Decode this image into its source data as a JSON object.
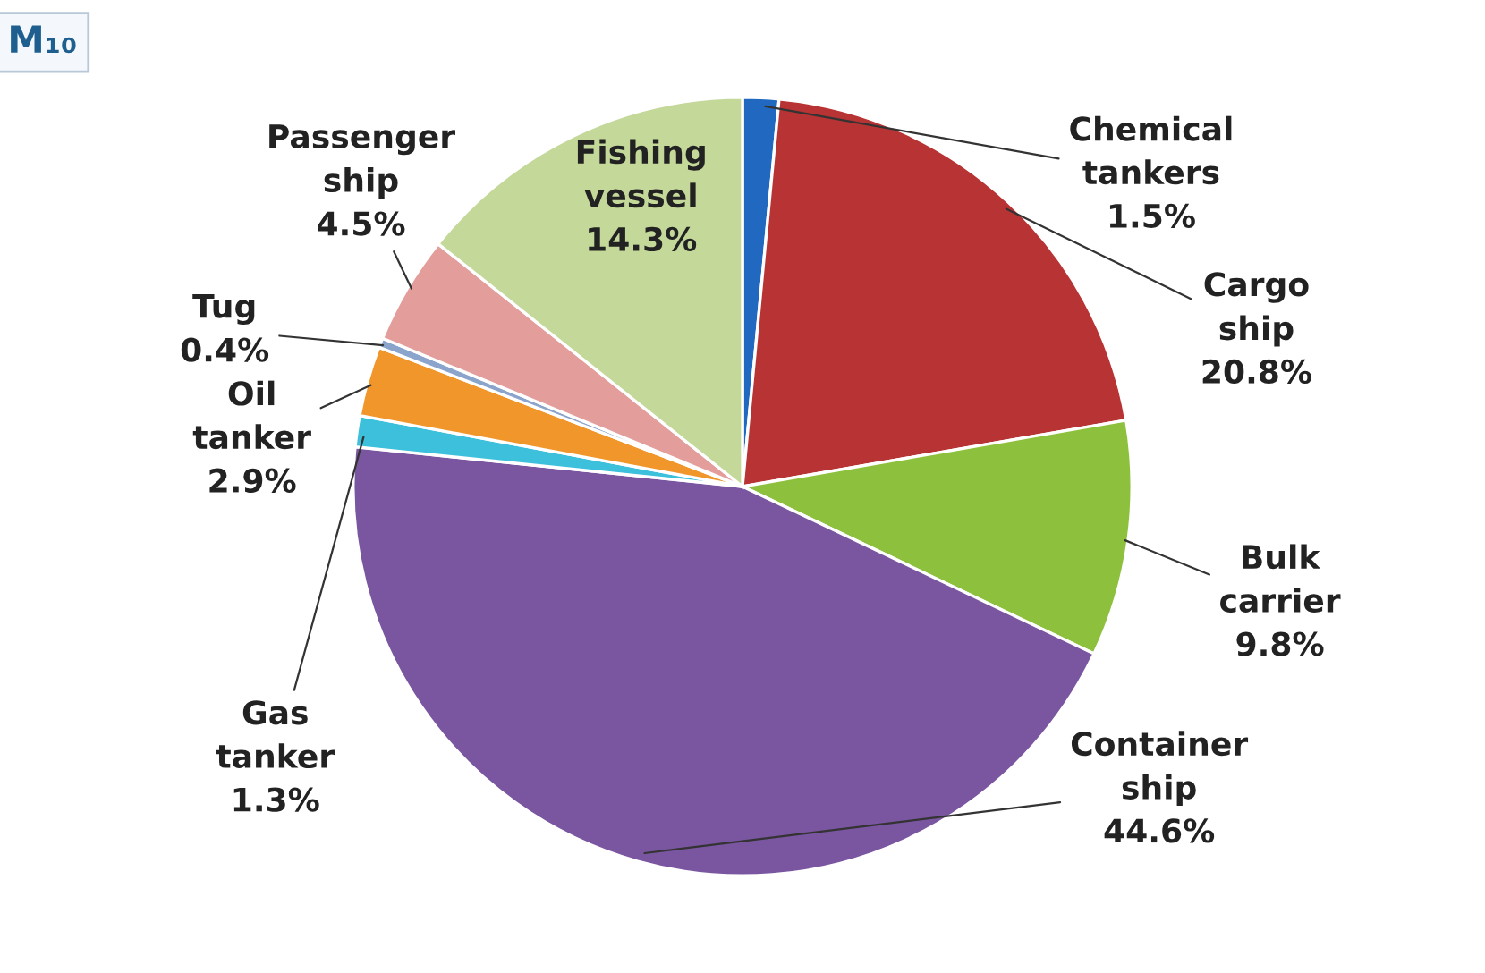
{
  "chart_data": {
    "type": "pie",
    "categories": [
      "Chemical tankers",
      "Cargo ship",
      "Bulk carrier",
      "Container ship",
      "Gas tanker",
      "Oil tanker",
      "Tug",
      "Passenger ship",
      "Fishing vessel"
    ],
    "values": [
      1.5,
      20.8,
      9.8,
      44.6,
      1.3,
      2.9,
      0.4,
      4.5,
      14.3
    ],
    "colors": [
      "#2068c0",
      "#b83333",
      "#8dc03c",
      "#7a55a0",
      "#3cc0dc",
      "#f0962a",
      "#8aa4cc",
      "#e39e9c",
      "#c4d89a"
    ],
    "value_labels": [
      "1.5%",
      "20.8%",
      "9.8%",
      "44.6%",
      "1.3%",
      "2.9%",
      "0.4%",
      "4.5%",
      "14.3%"
    ],
    "annotations": [
      "M₁₀"
    ]
  }
}
